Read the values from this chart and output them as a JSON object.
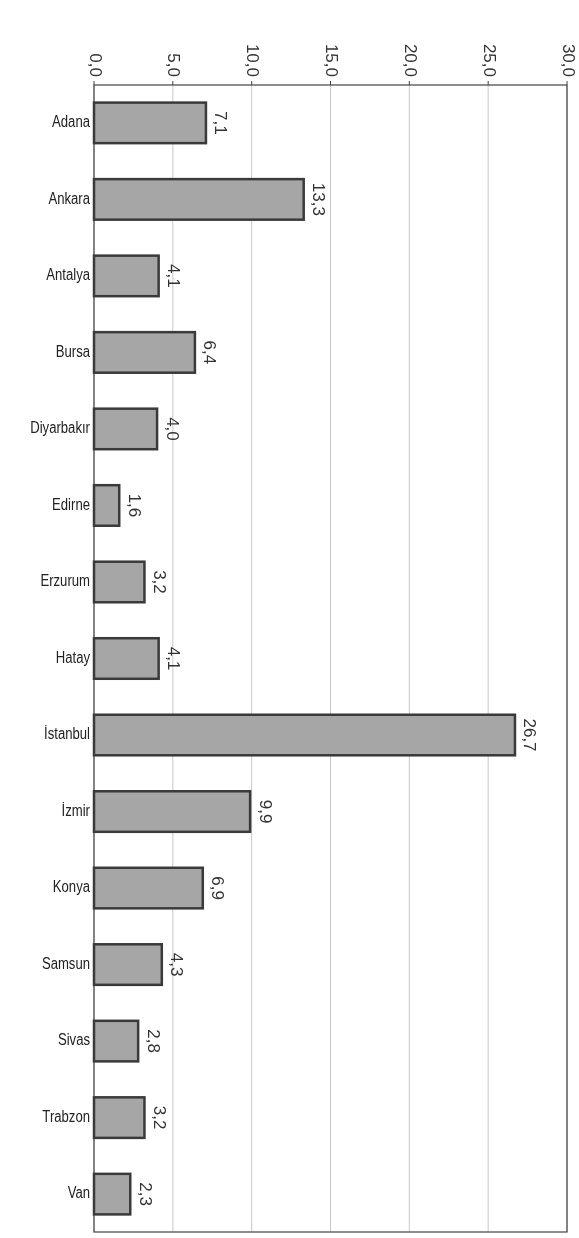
{
  "chart_data": {
    "type": "bar",
    "orientation": "horizontal",
    "categories": [
      "Adana",
      "Ankara",
      "Antalya",
      "Bursa",
      "Diyarbakır",
      "Edirne",
      "Erzurum",
      "Hatay",
      "İstanbul",
      "İzmir",
      "Konya",
      "Samsun",
      "Sivas",
      "Trabzon",
      "Van"
    ],
    "values": [
      7.1,
      13.3,
      4.1,
      6.4,
      4.0,
      1.6,
      3.2,
      4.1,
      26.7,
      9.9,
      6.9,
      4.3,
      2.8,
      3.2,
      2.3
    ],
    "value_labels": [
      "7,1",
      "13,3",
      "4,1",
      "6,4",
      "4,0",
      "1,6",
      "3,2",
      "4,1",
      "26,7",
      "9,9",
      "6,9",
      "4,3",
      "2,8",
      "3,2",
      "2,3"
    ],
    "color": "#a6a6a6",
    "xlim": [
      0,
      30
    ],
    "xticks": [
      {
        "value": 0,
        "label": "0,0"
      },
      {
        "value": 5,
        "label": "5,0"
      },
      {
        "value": 10,
        "label": "10,0"
      },
      {
        "value": 15,
        "label": "15,0"
      },
      {
        "value": 20,
        "label": "20,0"
      },
      {
        "value": 25,
        "label": "25,0"
      },
      {
        "value": 30,
        "label": "30,0"
      }
    ],
    "grid": "x"
  }
}
